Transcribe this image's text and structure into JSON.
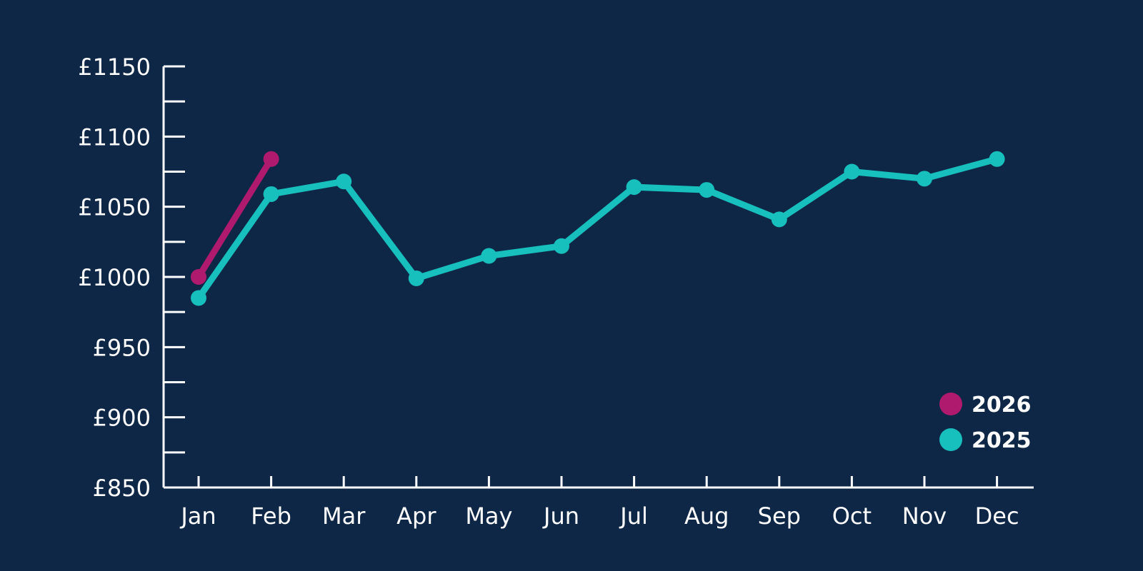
{
  "chart_data": {
    "type": "line",
    "title": "",
    "xlabel": "",
    "ylabel": "",
    "categories": [
      "Jan",
      "Feb",
      "Mar",
      "Apr",
      "May",
      "Jun",
      "Jul",
      "Aug",
      "Sep",
      "Oct",
      "Nov",
      "Dec"
    ],
    "y_ticks": [
      "£850",
      "£900",
      "£950",
      "£1000",
      "£1050",
      "£1100",
      "£1150"
    ],
    "y_tick_values": [
      850,
      900,
      950,
      1000,
      1050,
      1100,
      1150
    ],
    "ylim": [
      850,
      1150
    ],
    "grid": false,
    "legend_position": "bottom-right",
    "series": [
      {
        "name": "2026",
        "color": "#b01a6e",
        "values": [
          1000,
          1084,
          null,
          null,
          null,
          null,
          null,
          null,
          null,
          null,
          null,
          null
        ]
      },
      {
        "name": "2025",
        "color": "#17bfbd",
        "values": [
          985,
          1059,
          1068,
          999,
          1015,
          1022,
          1064,
          1062,
          1041,
          1075,
          1070,
          1084
        ]
      }
    ],
    "background_color": "#0e2746",
    "axis_color": "#ffffff"
  }
}
